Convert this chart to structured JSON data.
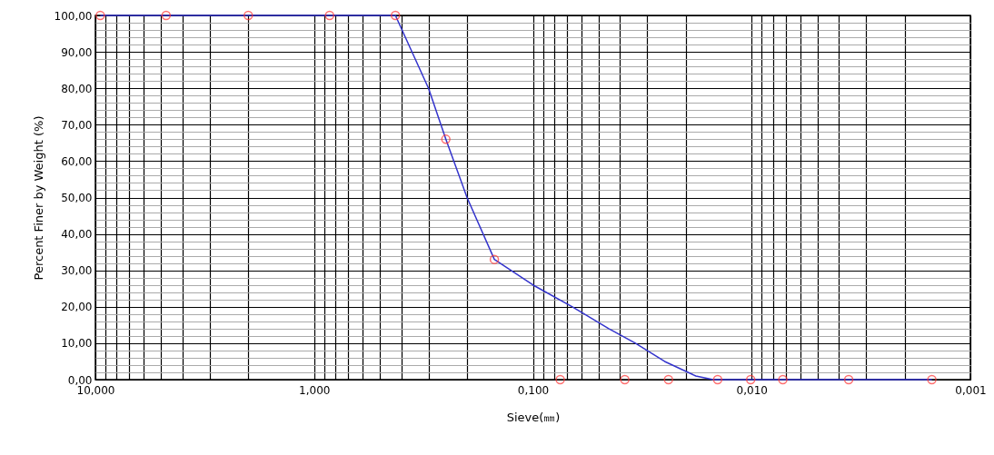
{
  "chart_data": {
    "type": "scatter",
    "xlabel": "Sieve(㎜)",
    "ylabel": "Percent Finer by Weight (%)",
    "log": "x",
    "grid": true,
    "xlim": [
      10,
      0.001
    ],
    "ylim": [
      0,
      100
    ],
    "xticks": [
      {
        "value": 10,
        "label": "10,000"
      },
      {
        "value": 9,
        "label": null
      },
      {
        "value": 8,
        "label": null
      },
      {
        "value": 7,
        "label": null
      },
      {
        "value": 6,
        "label": null
      },
      {
        "value": 5,
        "label": null
      },
      {
        "value": 4,
        "label": null
      },
      {
        "value": 3,
        "label": null
      },
      {
        "value": 2,
        "label": null
      },
      {
        "value": 1,
        "label": "1,000"
      },
      {
        "value": 0.9,
        "label": null
      },
      {
        "value": 0.8,
        "label": null
      },
      {
        "value": 0.7,
        "label": null
      },
      {
        "value": 0.6,
        "label": null
      },
      {
        "value": 0.5,
        "label": null
      },
      {
        "value": 0.4,
        "label": null
      },
      {
        "value": 0.3,
        "label": null
      },
      {
        "value": 0.2,
        "label": null
      },
      {
        "value": 0.1,
        "label": "0,100"
      },
      {
        "value": 0.09,
        "label": null
      },
      {
        "value": 0.08,
        "label": null
      },
      {
        "value": 0.07,
        "label": null
      },
      {
        "value": 0.06,
        "label": null
      },
      {
        "value": 0.05,
        "label": null
      },
      {
        "value": 0.04,
        "label": null
      },
      {
        "value": 0.03,
        "label": null
      },
      {
        "value": 0.02,
        "label": null
      },
      {
        "value": 0.01,
        "label": "0,010"
      },
      {
        "value": 0.009,
        "label": null
      },
      {
        "value": 0.008,
        "label": null
      },
      {
        "value": 0.007,
        "label": null
      },
      {
        "value": 0.006,
        "label": null
      },
      {
        "value": 0.005,
        "label": null
      },
      {
        "value": 0.004,
        "label": null
      },
      {
        "value": 0.003,
        "label": null
      },
      {
        "value": 0.002,
        "label": null
      },
      {
        "value": 0.001,
        "label": "0,001"
      }
    ],
    "yticks": [
      {
        "value": 0,
        "label": "0,00"
      },
      {
        "value": 2,
        "label": null
      },
      {
        "value": 4,
        "label": null
      },
      {
        "value": 6,
        "label": null
      },
      {
        "value": 8,
        "label": null
      },
      {
        "value": 10,
        "label": "10,00"
      },
      {
        "value": 12,
        "label": null
      },
      {
        "value": 14,
        "label": null
      },
      {
        "value": 16,
        "label": null
      },
      {
        "value": 18,
        "label": null
      },
      {
        "value": 20,
        "label": "20,00"
      },
      {
        "value": 22,
        "label": null
      },
      {
        "value": 24,
        "label": null
      },
      {
        "value": 26,
        "label": null
      },
      {
        "value": 28,
        "label": null
      },
      {
        "value": 30,
        "label": "30,00"
      },
      {
        "value": 32,
        "label": null
      },
      {
        "value": 34,
        "label": null
      },
      {
        "value": 36,
        "label": null
      },
      {
        "value": 38,
        "label": null
      },
      {
        "value": 40,
        "label": "40,00"
      },
      {
        "value": 42,
        "label": null
      },
      {
        "value": 44,
        "label": null
      },
      {
        "value": 46,
        "label": null
      },
      {
        "value": 48,
        "label": null
      },
      {
        "value": 50,
        "label": "50,00"
      },
      {
        "value": 52,
        "label": null
      },
      {
        "value": 54,
        "label": null
      },
      {
        "value": 56,
        "label": null
      },
      {
        "value": 58,
        "label": null
      },
      {
        "value": 60,
        "label": "60,00"
      },
      {
        "value": 62,
        "label": null
      },
      {
        "value": 64,
        "label": null
      },
      {
        "value": 66,
        "label": null
      },
      {
        "value": 68,
        "label": null
      },
      {
        "value": 70,
        "label": "70,00"
      },
      {
        "value": 72,
        "label": null
      },
      {
        "value": 74,
        "label": null
      },
      {
        "value": 76,
        "label": null
      },
      {
        "value": 78,
        "label": null
      },
      {
        "value": 80,
        "label": "80,00"
      },
      {
        "value": 82,
        "label": null
      },
      {
        "value": 84,
        "label": null
      },
      {
        "value": 86,
        "label": null
      },
      {
        "value": 88,
        "label": null
      },
      {
        "value": 90,
        "label": "90,00"
      },
      {
        "value": 92,
        "label": null
      },
      {
        "value": 94,
        "label": null
      },
      {
        "value": 96,
        "label": null
      },
      {
        "value": 98,
        "label": null
      },
      {
        "value": 100,
        "label": "100,00"
      }
    ],
    "series": [
      {
        "type": "line",
        "color": "#3333cc",
        "marker": "none",
        "x": [
          9.5,
          4.75,
          2,
          0.85,
          0.425,
          0.3,
          0.25,
          0.2,
          0.15,
          0.1,
          0.066,
          0.045,
          0.034,
          0.025,
          0.018,
          0.015,
          0.0015
        ],
        "values": [
          100,
          100,
          100,
          100,
          100,
          80,
          66,
          50,
          33,
          26,
          20,
          14,
          10,
          5,
          1,
          0,
          0
        ]
      },
      {
        "color": "#ff3333",
        "marker": "circle",
        "x": [
          9.5,
          4.75,
          2,
          0.85,
          0.425,
          0.25,
          0.15,
          0.075,
          0.038,
          0.024,
          0.0143,
          0.0101,
          0.0072,
          0.0036,
          0.0015
        ],
        "values": [
          100,
          100,
          100,
          100,
          100,
          66,
          33,
          0,
          0,
          0,
          0,
          0,
          0,
          0,
          0
        ]
      }
    ]
  }
}
